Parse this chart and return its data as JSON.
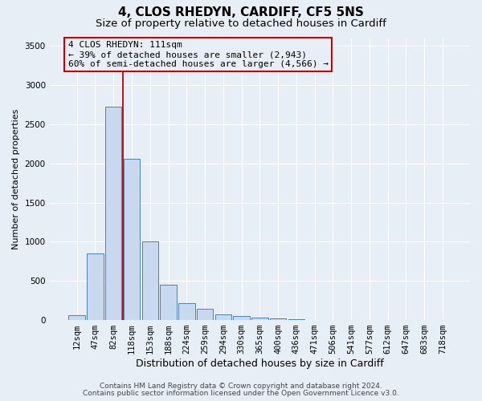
{
  "title": "4, CLOS RHEDYN, CARDIFF, CF5 5NS",
  "subtitle": "Size of property relative to detached houses in Cardiff",
  "xlabel": "Distribution of detached houses by size in Cardiff",
  "ylabel": "Number of detached properties",
  "footnote1": "Contains HM Land Registry data © Crown copyright and database right 2024.",
  "footnote2": "Contains public sector information licensed under the Open Government Licence v3.0.",
  "bar_labels": [
    "12sqm",
    "47sqm",
    "82sqm",
    "118sqm",
    "153sqm",
    "188sqm",
    "224sqm",
    "259sqm",
    "294sqm",
    "330sqm",
    "365sqm",
    "400sqm",
    "436sqm",
    "471sqm",
    "506sqm",
    "541sqm",
    "577sqm",
    "612sqm",
    "647sqm",
    "683sqm",
    "718sqm"
  ],
  "bar_values": [
    60,
    850,
    2720,
    2060,
    1000,
    450,
    220,
    145,
    70,
    50,
    35,
    25,
    10,
    5,
    2,
    1,
    1,
    0,
    0,
    0,
    0
  ],
  "bar_color": "#c8d8ee",
  "bar_edge_color": "#5080b0",
  "ylim": [
    0,
    3600
  ],
  "yticks": [
    0,
    500,
    1000,
    1500,
    2000,
    2500,
    3000,
    3500
  ],
  "vline_x": 2.5,
  "vline_color": "#bb0000",
  "annotation_text_line1": "4 CLOS RHEDYN: 111sqm",
  "annotation_text_line2": "← 39% of detached houses are smaller (2,943)",
  "annotation_text_line3": "60% of semi-detached houses are larger (4,566) →",
  "annotation_box_edgecolor": "#cc0000",
  "bg_color": "#e8eef6",
  "grid_color": "#ffffff",
  "title_fontsize": 11,
  "subtitle_fontsize": 9.5,
  "ylabel_fontsize": 8,
  "xlabel_fontsize": 9,
  "tick_fontsize": 7.5,
  "annotation_fontsize": 8,
  "footnote_fontsize": 6.5
}
